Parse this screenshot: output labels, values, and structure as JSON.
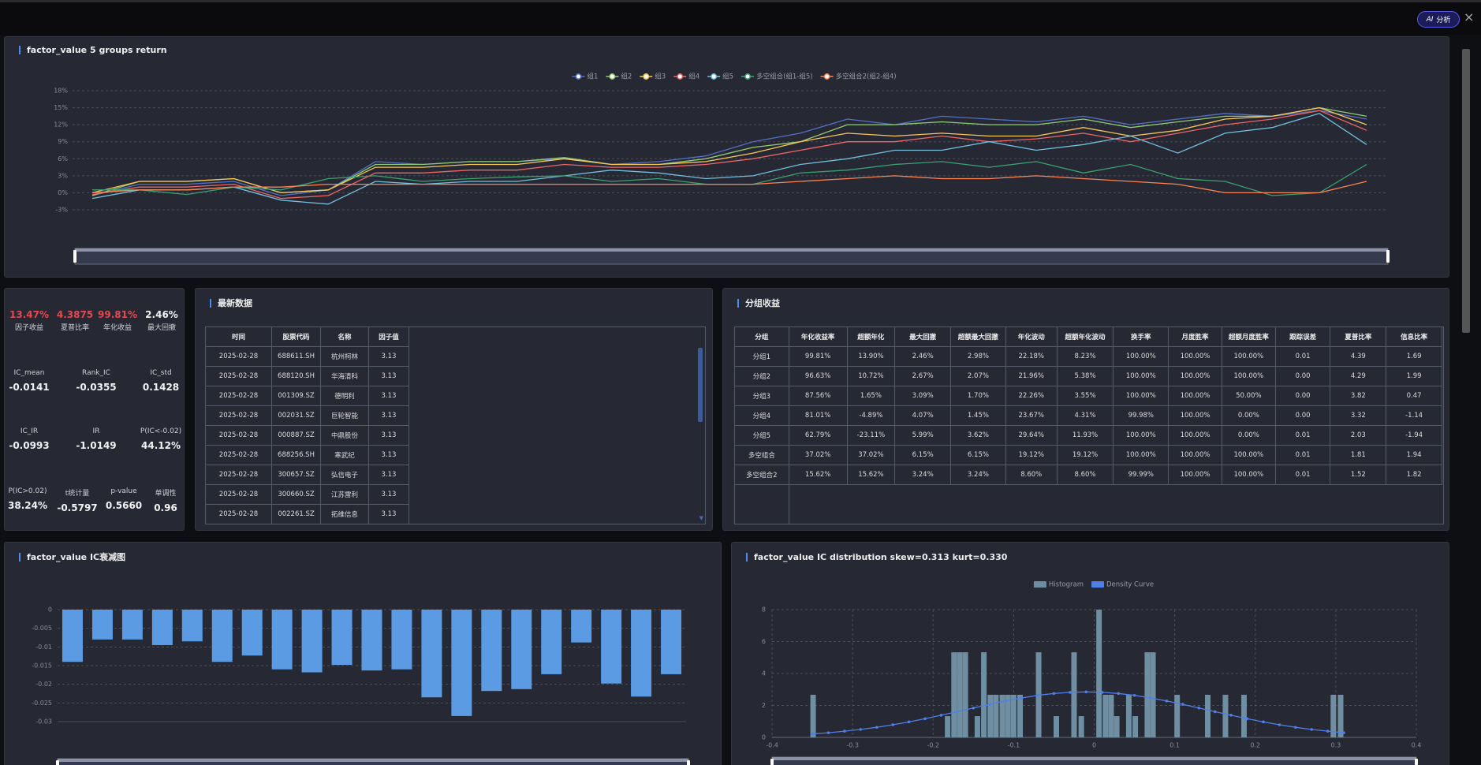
{
  "header": {
    "ai_icon": "AI",
    "ai_label": "分析"
  },
  "returns_chart": {
    "type": "line",
    "title": "factor_value 5 groups return",
    "ylim": [
      -3,
      18
    ],
    "yticks": [
      {
        "value": -3,
        "label": "-3%"
      },
      {
        "value": 0,
        "label": "0%"
      },
      {
        "value": 3,
        "label": "3%"
      },
      {
        "value": 6,
        "label": "6%"
      },
      {
        "value": 9,
        "label": "9%"
      },
      {
        "value": 12,
        "label": "12%"
      },
      {
        "value": 15,
        "label": "15%"
      },
      {
        "value": 18,
        "label": "18%"
      }
    ],
    "grid": true,
    "series": [
      {
        "name": "组1",
        "color": "#5470c6",
        "values": [
          -0.5,
          1.5,
          1.5,
          2,
          -0.5,
          0.5,
          5.5,
          5,
          5.5,
          5.5,
          6,
          5,
          5.5,
          6.5,
          9,
          10.5,
          13,
          12,
          13.5,
          13,
          12.5,
          13.5,
          12,
          13,
          14,
          13.5,
          14.5,
          13
        ]
      },
      {
        "name": "组2",
        "color": "#91cc75",
        "values": [
          -0.5,
          2,
          2,
          2.5,
          0,
          0.5,
          5,
          5,
          5.5,
          5.5,
          6.2,
          5,
          5,
          6,
          8,
          9,
          12,
          12,
          12.5,
          12,
          12,
          13,
          11.5,
          12.5,
          13.5,
          13.5,
          15,
          13.5
        ]
      },
      {
        "name": "组3",
        "color": "#fac858",
        "values": [
          0,
          2,
          2,
          2.5,
          0,
          0.5,
          4.5,
          4.5,
          5,
          5,
          6,
          5,
          5,
          5.5,
          7,
          9,
          10.5,
          10,
          10.5,
          10,
          10,
          11.5,
          10,
          11,
          13,
          13.5,
          15,
          12
        ]
      },
      {
        "name": "组4",
        "color": "#ee6666",
        "values": [
          -0.3,
          1,
          1,
          1.5,
          -1,
          -0.5,
          3.5,
          3.5,
          4,
          4,
          5,
          4.5,
          4.5,
          5,
          6,
          7.5,
          9,
          9,
          10,
          9,
          9.5,
          10.5,
          9,
          10.5,
          12,
          13,
          14.5,
          11
        ]
      },
      {
        "name": "组5",
        "color": "#73c0de",
        "values": [
          -1,
          0.5,
          0.5,
          1,
          -1.3,
          -2,
          2,
          1.5,
          2,
          2,
          3,
          4,
          3.5,
          2.5,
          3,
          5,
          6,
          7.5,
          7.5,
          9,
          7.5,
          8.5,
          10,
          7,
          10.5,
          11.5,
          14,
          8.5
        ]
      },
      {
        "name": "多空组合(组1-组5)",
        "color": "#3ba272",
        "values": [
          0.5,
          0.5,
          -0.3,
          1,
          0.5,
          2.5,
          3,
          2,
          2.5,
          2.8,
          3,
          2,
          2.5,
          1.5,
          1.5,
          3.5,
          4,
          5,
          5.5,
          4.5,
          5.5,
          3.5,
          5,
          2.5,
          2,
          -0.5,
          0,
          5
        ]
      },
      {
        "name": "多空组合2(组2-组4)",
        "color": "#fc8452",
        "values": [
          0,
          0.5,
          0.5,
          1,
          1,
          1.5,
          1.5,
          1.5,
          1.5,
          1.5,
          1.5,
          1.5,
          1.5,
          1.5,
          1.5,
          2,
          2.5,
          3,
          2.5,
          2.5,
          3,
          2.5,
          2,
          1.5,
          0,
          0,
          0,
          2
        ]
      }
    ]
  },
  "metrics": [
    [
      {
        "value": "13.47%",
        "label": "因子收益"
      },
      {
        "value": "4.3875",
        "label": "夏普比率"
      },
      {
        "value": "99.81%",
        "label": "年化收益"
      },
      {
        "value": "2.46%",
        "label": "最大回撤"
      }
    ],
    [
      {
        "label": "IC_mean",
        "value": "-0.0141"
      },
      {
        "label": "Rank_IC",
        "value": "-0.0355"
      },
      {
        "label": "IC_std",
        "value": "0.1428"
      }
    ],
    [
      {
        "label": "IC_IR",
        "value": "-0.0993"
      },
      {
        "label": "IR",
        "value": "-1.0149"
      },
      {
        "label": "P(IC<-0.02)",
        "value": "44.12%"
      }
    ],
    [
      {
        "label": "P(IC>0.02)",
        "value": "38.24%"
      },
      {
        "label": "t统计量",
        "value": "-0.5797"
      },
      {
        "label": "p-value",
        "value": "0.5660"
      },
      {
        "label": "单调性",
        "value": "0.96"
      }
    ]
  ],
  "latest_data": {
    "title": "最新数据",
    "columns": [
      "时间",
      "股票代码",
      "名称",
      "因子值"
    ],
    "rows": [
      [
        "2025-02-28",
        "688611.SH",
        "杭州柯林",
        "3.13"
      ],
      [
        "2025-02-28",
        "688120.SH",
        "华海清科",
        "3.13"
      ],
      [
        "2025-02-28",
        "001309.SZ",
        "德明利",
        "3.13"
      ],
      [
        "2025-02-28",
        "002031.SZ",
        "巨轮智能",
        "3.13"
      ],
      [
        "2025-02-28",
        "000887.SZ",
        "中鼎股份",
        "3.13"
      ],
      [
        "2025-02-28",
        "688256.SH",
        "寒武纪",
        "3.13"
      ],
      [
        "2025-02-28",
        "300657.SZ",
        "弘信电子",
        "3.13"
      ],
      [
        "2025-02-28",
        "300660.SZ",
        "江苏雷利",
        "3.13"
      ],
      [
        "2025-02-28",
        "002261.SZ",
        "拓维信息",
        "3.13"
      ]
    ]
  },
  "group_returns": {
    "title": "分组收益",
    "columns": [
      "分组",
      "年化收益率",
      "超额年化",
      "最大回撤",
      "超额最大回撤",
      "年化波动",
      "超额年化波动",
      "换手率",
      "月度胜率",
      "超额月度胜率",
      "跟踪误差",
      "夏普比率",
      "信息比率"
    ],
    "rows": [
      [
        "分组1",
        "99.81%",
        "13.90%",
        "2.46%",
        "2.98%",
        "22.18%",
        "8.23%",
        "100.00%",
        "100.00%",
        "100.00%",
        "0.01",
        "4.39",
        "1.69"
      ],
      [
        "分组2",
        "96.63%",
        "10.72%",
        "2.67%",
        "2.07%",
        "21.96%",
        "5.38%",
        "100.00%",
        "100.00%",
        "100.00%",
        "0.00",
        "4.29",
        "1.99"
      ],
      [
        "分组3",
        "87.56%",
        "1.65%",
        "3.09%",
        "1.70%",
        "22.26%",
        "3.55%",
        "100.00%",
        "100.00%",
        "50.00%",
        "0.00",
        "3.82",
        "0.47"
      ],
      [
        "分组4",
        "81.01%",
        "-4.89%",
        "4.07%",
        "1.45%",
        "23.67%",
        "4.31%",
        "99.98%",
        "100.00%",
        "0.00%",
        "0.00",
        "3.32",
        "-1.14"
      ],
      [
        "分组5",
        "62.79%",
        "-23.11%",
        "5.99%",
        "3.62%",
        "29.64%",
        "11.93%",
        "100.00%",
        "100.00%",
        "0.00%",
        "0.01",
        "2.03",
        "-1.94"
      ],
      [
        "多空组合",
        "37.02%",
        "37.02%",
        "6.15%",
        "6.15%",
        "19.12%",
        "19.12%",
        "100.00%",
        "100.00%",
        "100.00%",
        "0.01",
        "1.81",
        "1.94"
      ],
      [
        "多空组合2",
        "15.62%",
        "15.62%",
        "3.24%",
        "3.24%",
        "8.60%",
        "8.60%",
        "99.99%",
        "100.00%",
        "100.00%",
        "0.01",
        "1.52",
        "1.82"
      ]
    ]
  },
  "ic_decay": {
    "type": "bar",
    "title": "factor_value IC衰减图",
    "color": "#5a9be3",
    "values": [
      -0.014,
      -0.008,
      -0.008,
      -0.0095,
      -0.0085,
      -0.014,
      -0.0123,
      -0.016,
      -0.0168,
      -0.0148,
      -0.0163,
      -0.016,
      -0.0235,
      -0.0285,
      -0.0218,
      -0.0213,
      -0.0173,
      -0.0088,
      -0.0198,
      -0.0233,
      -0.0173
    ],
    "ylim": [
      -0.03,
      0
    ],
    "yticks": [
      0,
      -0.005,
      -0.01,
      -0.015,
      -0.02,
      -0.025,
      -0.03
    ],
    "grid": true
  },
  "ic_distribution": {
    "type": "histogram",
    "title": "factor_value IC distribution skew=0.313 kurt=0.330",
    "xlim": [
      -0.4,
      0.4
    ],
    "xticks": [
      -0.4,
      -0.3,
      -0.2,
      -0.1,
      0,
      0.1,
      0.2,
      0.3,
      0.4
    ],
    "ylim": [
      0,
      8
    ],
    "yticks": [
      0,
      2,
      4,
      6,
      8
    ],
    "grid": true,
    "series": [
      {
        "name": "Histogram",
        "type": "bar",
        "color": "#6f8ea1",
        "x": [
          -0.349,
          -0.182,
          -0.174,
          -0.167,
          -0.16,
          -0.145,
          -0.137,
          -0.129,
          -0.122,
          -0.114,
          -0.107,
          -0.1,
          -0.092,
          -0.069,
          -0.047,
          -0.025,
          -0.016,
          0.006,
          0.014,
          0.021,
          0.028,
          0.043,
          0.051,
          0.066,
          0.073,
          0.103,
          0.141,
          0.163,
          0.186,
          0.297,
          0.306
        ],
        "values": [
          2.67,
          1.33,
          5.33,
          5.33,
          5.33,
          1.33,
          5.33,
          2.67,
          2.67,
          2.67,
          2.67,
          2.67,
          2.67,
          5.33,
          1.33,
          5.33,
          1.33,
          8,
          2.67,
          2.67,
          1.33,
          2.67,
          1.33,
          5.33,
          5.33,
          2.67,
          2.67,
          2.67,
          2.67,
          2.67,
          2.67
        ]
      },
      {
        "name": "Density Curve",
        "type": "line",
        "color": "#4f7fe8",
        "x": [
          -0.35,
          -0.33,
          -0.31,
          -0.29,
          -0.27,
          -0.25,
          -0.23,
          -0.21,
          -0.19,
          -0.17,
          -0.15,
          -0.13,
          -0.11,
          -0.09,
          -0.07,
          -0.05,
          -0.03,
          -0.01,
          0.01,
          0.03,
          0.05,
          0.07,
          0.09,
          0.11,
          0.13,
          0.15,
          0.17,
          0.19,
          0.21,
          0.23,
          0.25,
          0.27,
          0.29,
          0.31
        ],
        "values": [
          0.22,
          0.29,
          0.39,
          0.5,
          0.63,
          0.79,
          0.97,
          1.17,
          1.39,
          1.61,
          1.84,
          2.07,
          2.28,
          2.47,
          2.63,
          2.75,
          2.82,
          2.85,
          2.82,
          2.75,
          2.63,
          2.47,
          2.28,
          2.07,
          1.84,
          1.61,
          1.39,
          1.17,
          0.97,
          0.79,
          0.63,
          0.5,
          0.39,
          0.29
        ]
      }
    ]
  }
}
